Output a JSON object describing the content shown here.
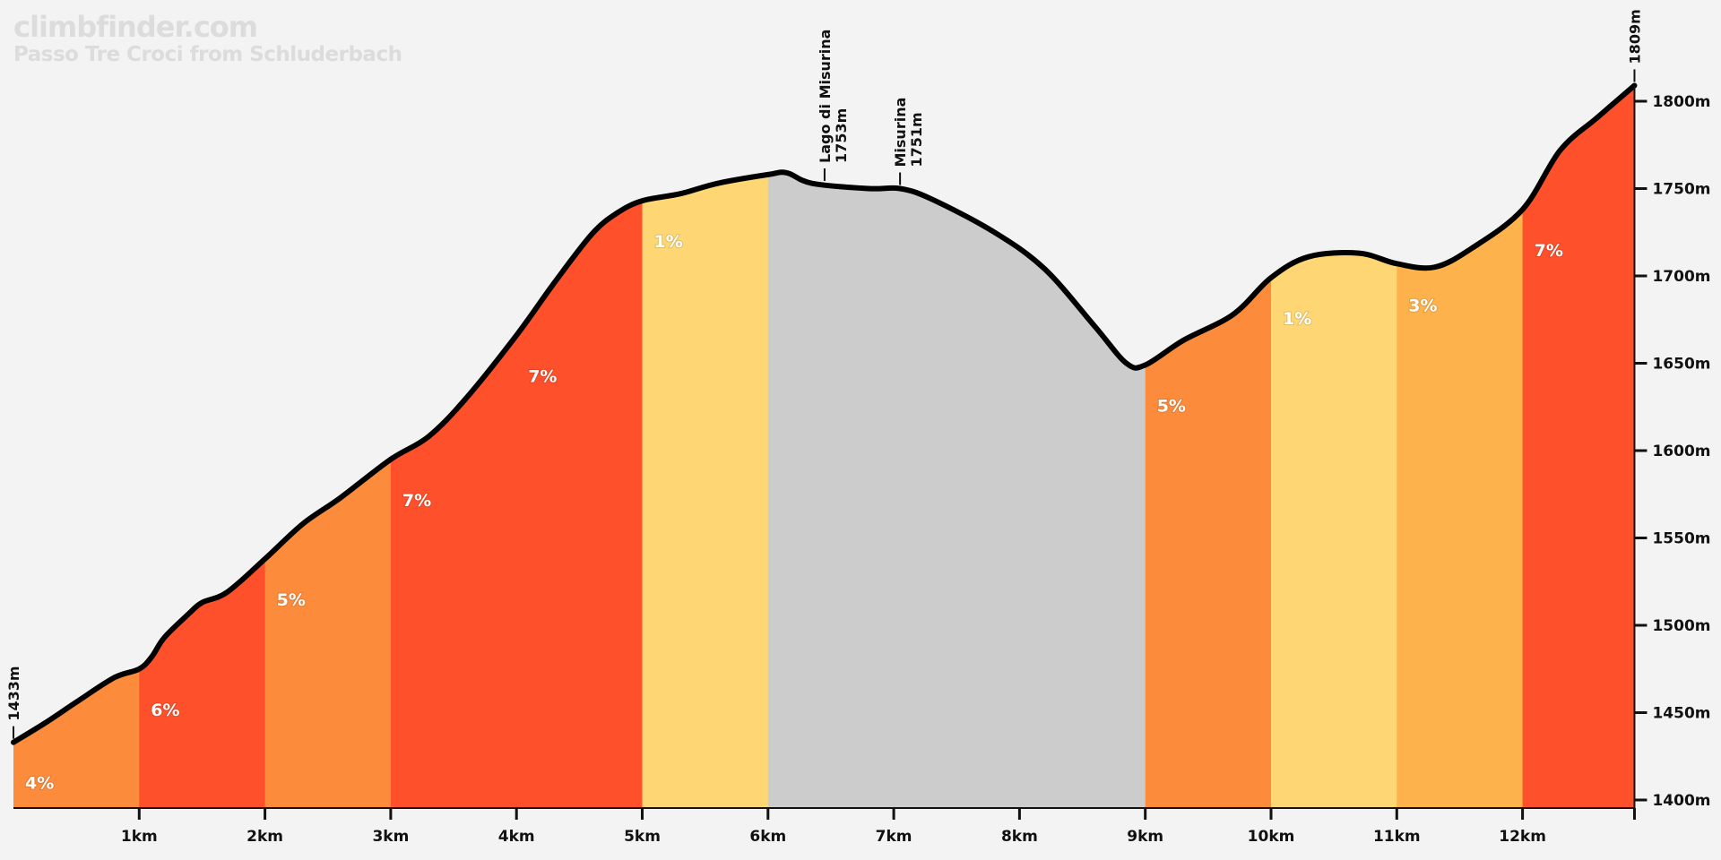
{
  "watermark": {
    "site": "climbfinder.com",
    "title": "Passo Tre Croci from Schluderbach"
  },
  "chart_data": {
    "type": "area",
    "title": "Passo Tre Croci from Schluderbach",
    "xlabel": "",
    "ylabel": "",
    "xlim": [
      0,
      12.89
    ],
    "ylim": [
      1400,
      1830
    ],
    "x_ticks": [
      1,
      2,
      3,
      4,
      5,
      6,
      7,
      8,
      9,
      10,
      11,
      12
    ],
    "x_tick_labels": [
      "1km",
      "2km",
      "3km",
      "4km",
      "5km",
      "6km",
      "7km",
      "8km",
      "9km",
      "10km",
      "11km",
      "12km"
    ],
    "y_ticks": [
      1400,
      1450,
      1500,
      1550,
      1600,
      1650,
      1700,
      1750,
      1800
    ],
    "y_tick_labels": [
      "1400m",
      "1450m",
      "1500m",
      "1550m",
      "1600m",
      "1650m",
      "1700m",
      "1750m",
      "1800m"
    ],
    "grid": false,
    "profile": {
      "x": [
        0,
        0.25,
        0.5,
        0.8,
        1.0,
        1.1,
        1.2,
        1.4,
        1.5,
        1.7,
        2.0,
        2.3,
        2.6,
        3.0,
        3.3,
        3.6,
        4.0,
        4.3,
        4.6,
        4.8,
        5.0,
        5.3,
        5.6,
        6.0,
        6.15,
        6.35,
        6.8,
        7.05,
        7.3,
        7.8,
        8.2,
        8.6,
        8.85,
        9.0,
        9.3,
        9.7,
        10.0,
        10.3,
        10.7,
        11.0,
        11.3,
        11.6,
        12.0,
        12.3,
        12.6,
        12.89
      ],
      "elevation": [
        1433,
        1444,
        1456,
        1470,
        1475,
        1482,
        1493,
        1507,
        1513,
        1519,
        1538,
        1558,
        1573,
        1595,
        1608,
        1630,
        1666,
        1696,
        1724,
        1736,
        1743,
        1747,
        1753,
        1758,
        1759,
        1753,
        1750,
        1750,
        1744,
        1725,
        1704,
        1671,
        1650,
        1649,
        1663,
        1678,
        1699,
        1711,
        1713,
        1707,
        1705,
        1716,
        1738,
        1772,
        1791,
        1809
      ]
    },
    "segments": [
      {
        "start": 0,
        "end": 1,
        "grade": "4%",
        "color": "#fd8b3c"
      },
      {
        "start": 1,
        "end": 2,
        "grade": "6%",
        "color": "#fe502b"
      },
      {
        "start": 2,
        "end": 3,
        "grade": "5%",
        "color": "#fd8b3c"
      },
      {
        "start": 3,
        "end": 4,
        "grade": "7%",
        "color": "#fe502b"
      },
      {
        "start": 4,
        "end": 5,
        "grade": "7%",
        "color": "#fe502b"
      },
      {
        "start": 5,
        "end": 6,
        "grade": "1%",
        "color": "#fed674"
      },
      {
        "start": 6,
        "end": 9,
        "grade": "",
        "color": "#cccccc"
      },
      {
        "start": 9,
        "end": 10,
        "grade": "5%",
        "color": "#fd8b3c"
      },
      {
        "start": 10,
        "end": 11,
        "grade": "1%",
        "color": "#fed674"
      },
      {
        "start": 11,
        "end": 12,
        "grade": "3%",
        "color": "#fdb24b"
      },
      {
        "start": 12,
        "end": 12.89,
        "grade": "7%",
        "color": "#fe502b"
      }
    ],
    "waypoints": [
      {
        "km": 0,
        "name": "",
        "elevation_label": "1433m"
      },
      {
        "km": 6.45,
        "name": "Lago di Misurina",
        "elevation_label": "1753m"
      },
      {
        "km": 7.05,
        "name": "Misurina",
        "elevation_label": "1751m"
      },
      {
        "km": 12.89,
        "name": "",
        "elevation_label": "1809m"
      }
    ],
    "colors": {
      "line": "#000000",
      "axis": "#111111",
      "background": "#f3f3f3"
    }
  }
}
